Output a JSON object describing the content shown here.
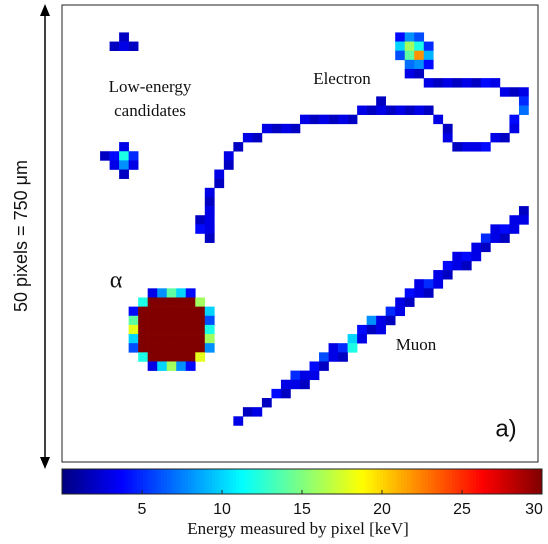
{
  "chart_data": {
    "type": "heatmap",
    "ylabel": "50 pixels = 750 μm",
    "colorbar_label": "Energy measured by pixel [keV]",
    "annotations": [
      "Low-energy",
      "candidates",
      "Electron",
      "α",
      "Muon",
      "a)"
    ],
    "xlim": [
      0,
      50
    ],
    "ylim": [
      0,
      50
    ],
    "clim": [
      0,
      30
    ],
    "cticks": [
      5,
      10,
      15,
      20,
      25,
      30
    ],
    "colormap": "jet",
    "x": [
      6,
      5,
      6,
      7,
      6,
      4,
      5,
      6,
      7,
      5,
      6,
      7,
      6,
      35,
      36,
      37,
      35,
      36,
      37,
      38,
      35,
      36,
      37,
      38,
      36,
      37,
      38,
      36,
      37,
      38,
      39,
      40,
      41,
      42,
      43,
      44,
      45,
      46,
      47,
      48,
      48,
      48,
      47,
      47,
      46,
      45,
      44,
      43,
      42,
      41,
      40,
      40,
      39,
      38,
      37,
      36,
      35,
      34,
      33,
      33,
      32,
      31,
      30,
      29,
      28,
      27,
      26,
      25,
      24,
      23,
      22,
      21,
      20,
      19,
      18,
      17,
      17,
      16,
      16,
      15,
      15,
      15,
      14,
      15,
      14,
      15,
      15,
      9,
      10,
      11,
      12,
      13,
      8,
      9,
      10,
      11,
      12,
      13,
      14,
      7,
      8,
      9,
      10,
      11,
      12,
      13,
      14,
      15,
      7,
      8,
      9,
      10,
      11,
      12,
      13,
      14,
      15,
      7,
      8,
      9,
      10,
      11,
      12,
      13,
      14,
      15,
      7,
      8,
      9,
      10,
      11,
      12,
      13,
      14,
      15,
      7,
      8,
      9,
      10,
      11,
      12,
      13,
      14,
      15,
      8,
      9,
      10,
      11,
      12,
      13,
      14,
      9,
      10,
      11,
      12,
      13,
      18,
      19,
      20,
      21,
      22,
      23,
      24,
      25,
      26,
      27,
      28,
      29,
      30,
      31,
      32,
      33,
      34,
      35,
      36,
      37,
      38,
      39,
      40,
      41,
      42,
      43,
      44,
      45,
      46,
      47,
      48,
      23,
      24,
      25,
      26,
      27,
      28,
      29,
      30,
      31,
      32,
      33,
      34,
      35,
      36,
      37,
      38,
      39,
      40,
      41,
      42,
      43,
      44,
      45,
      46,
      47,
      48
    ],
    "y": [
      3,
      4,
      4,
      4,
      15,
      16,
      16,
      16,
      16,
      17,
      17,
      17,
      18,
      3,
      3,
      3,
      4,
      4,
      4,
      4,
      5,
      5,
      5,
      5,
      6,
      6,
      6,
      7,
      7,
      8,
      8,
      8,
      8,
      8,
      8,
      8,
      8,
      9,
      9,
      9,
      10,
      11,
      12,
      13,
      14,
      14,
      15,
      15,
      15,
      15,
      14,
      13,
      12,
      11,
      11,
      11,
      11,
      11,
      11,
      10,
      11,
      11,
      12,
      12,
      12,
      12,
      12,
      12,
      13,
      13,
      13,
      13,
      14,
      14,
      15,
      16,
      17,
      18,
      19,
      20,
      21,
      22,
      23,
      23,
      24,
      24,
      25,
      31,
      31,
      31,
      31,
      31,
      32,
      32,
      32,
      32,
      32,
      32,
      32,
      33,
      33,
      33,
      33,
      33,
      33,
      33,
      33,
      33,
      34,
      34,
      34,
      34,
      34,
      34,
      34,
      34,
      34,
      35,
      35,
      35,
      35,
      35,
      35,
      35,
      35,
      35,
      36,
      36,
      36,
      36,
      36,
      36,
      36,
      36,
      36,
      37,
      37,
      37,
      37,
      37,
      37,
      37,
      37,
      37,
      38,
      38,
      38,
      38,
      38,
      38,
      38,
      39,
      39,
      39,
      39,
      39,
      45,
      44,
      44,
      43,
      42,
      41,
      40,
      40,
      39,
      38,
      37,
      37,
      36,
      35,
      34,
      34,
      33,
      32,
      31,
      30,
      30,
      29,
      28,
      27,
      27,
      26,
      25,
      24,
      24,
      23,
      22,
      42,
      41,
      41,
      40,
      39,
      38,
      38,
      37,
      36,
      35,
      35,
      34,
      33,
      32,
      31,
      31,
      30,
      29,
      28,
      28,
      27,
      26,
      25,
      25,
      24,
      23
    ],
    "values": [
      2,
      2,
      3,
      2,
      3,
      2,
      4,
      12,
      5,
      3,
      8,
      3,
      2,
      4,
      8,
      6,
      10,
      16,
      12,
      5,
      6,
      14,
      22,
      9,
      7,
      8,
      4,
      3,
      2,
      3,
      2,
      3,
      2,
      3,
      2,
      4,
      3,
      3,
      2,
      3,
      5,
      7,
      4,
      3,
      2,
      3,
      4,
      3,
      3,
      2,
      3,
      2,
      3,
      2,
      3,
      2,
      3,
      2,
      3,
      2,
      2,
      3,
      2,
      3,
      2,
      3,
      2,
      3,
      2,
      3,
      2,
      3,
      2,
      3,
      2,
      3,
      2,
      3,
      2,
      3,
      2,
      3,
      2,
      3,
      4,
      3,
      2,
      3,
      8,
      14,
      10,
      4,
      12,
      30,
      30,
      30,
      30,
      30,
      16,
      4,
      30,
      30,
      30,
      30,
      30,
      30,
      30,
      10,
      14,
      30,
      30,
      30,
      30,
      30,
      30,
      30,
      6,
      18,
      30,
      30,
      30,
      30,
      30,
      30,
      30,
      12,
      10,
      30,
      30,
      30,
      30,
      30,
      30,
      30,
      16,
      6,
      30,
      30,
      30,
      30,
      30,
      30,
      30,
      8,
      12,
      30,
      30,
      30,
      30,
      30,
      18,
      3,
      10,
      16,
      8,
      4,
      3,
      2,
      3,
      2,
      4,
      3,
      5,
      3,
      4,
      6,
      3,
      5,
      10,
      4,
      8,
      3,
      5,
      3,
      4,
      3,
      5,
      3,
      4,
      3,
      4,
      3,
      5,
      3,
      4,
      3,
      2,
      2,
      3,
      2,
      3,
      2,
      3,
      2,
      12,
      3,
      2,
      3,
      2,
      3,
      2,
      3,
      2,
      3,
      2,
      3,
      2,
      3,
      2,
      3,
      2,
      3,
      3
    ]
  }
}
